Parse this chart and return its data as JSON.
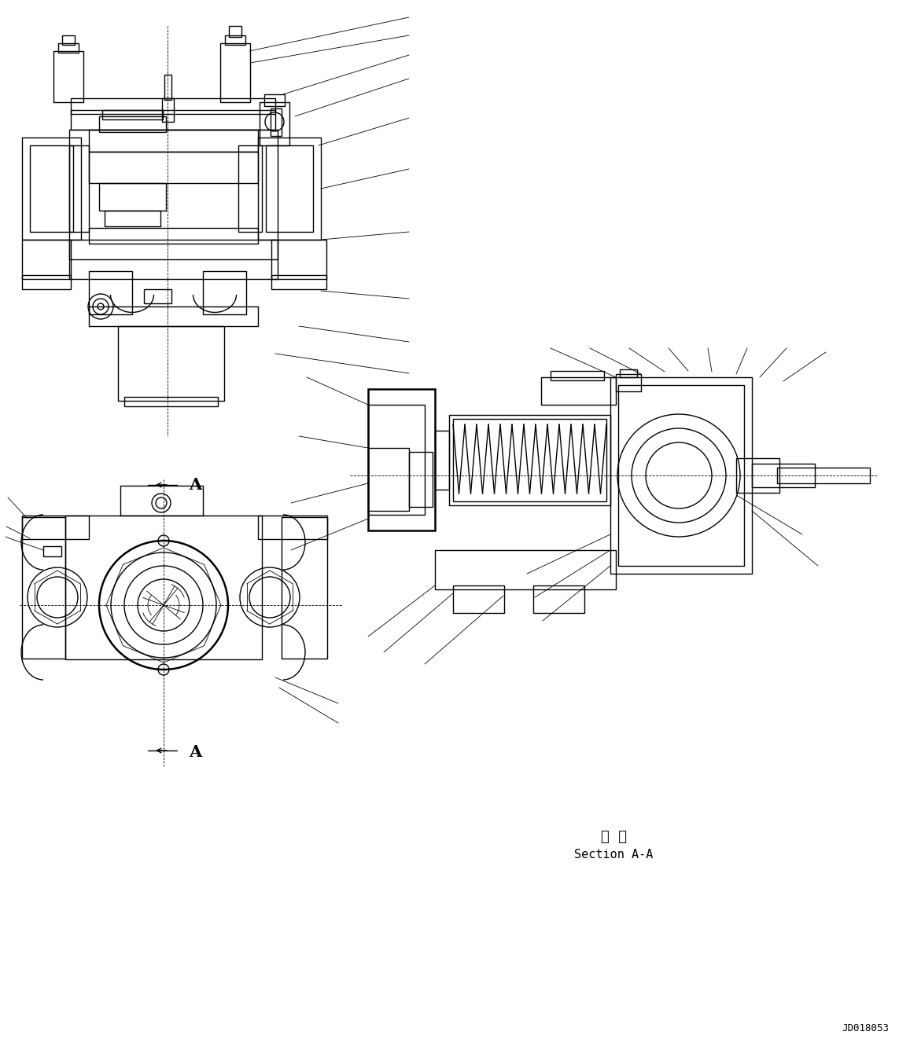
{
  "bg_color": "#ffffff",
  "line_color": "#000000",
  "lw": 1.0,
  "tlw": 0.6,
  "thk": 1.8,
  "fig_width": 11.57,
  "fig_height": 13.31,
  "watermark": "JD018053",
  "section_label_1": "断  面",
  "section_label_2": "Section A-A",
  "label_A": "A"
}
